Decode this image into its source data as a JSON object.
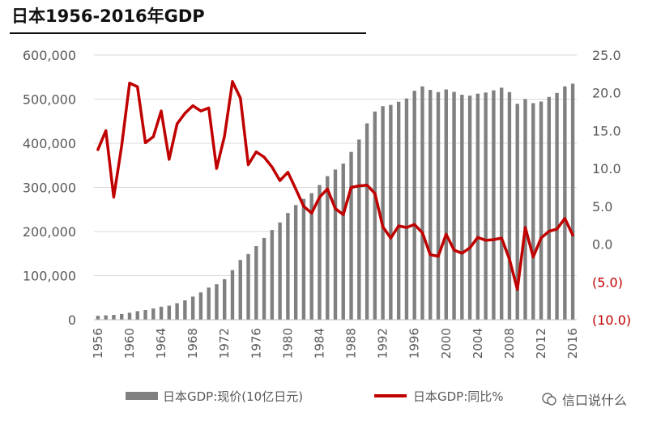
{
  "title": "日本1956-2016年GDP",
  "watermark": "信口说什么",
  "colors": {
    "bar": "#808080",
    "line": "#c00000",
    "grid": "#d9d9d9",
    "axis_text": "#595959",
    "neg_text": "#c00000"
  },
  "chart_data": {
    "type": "bar+line",
    "title": "日本1956-2016年GDP",
    "x_ticks": [
      "1956",
      "1960",
      "1964",
      "1968",
      "1972",
      "1976",
      "1980",
      "1984",
      "1988",
      "1992",
      "1996",
      "2000",
      "2004",
      "2008",
      "2012",
      "2016"
    ],
    "left_axis": {
      "ylim": [
        0,
        600000
      ],
      "ticks": [
        "0",
        "100,000",
        "200,000",
        "300,000",
        "400,000",
        "500,000",
        "600,000"
      ]
    },
    "right_axis": {
      "ylim": [
        -10,
        25
      ],
      "ticks": [
        "(10.0)",
        "(5.0)",
        "0.0",
        "5.0",
        "10.0",
        "15.0",
        "20.0",
        "25.0"
      ]
    },
    "legend": {
      "bar_label": "日本GDP:现价(10亿日元)",
      "line_label": "日本GDP:同比%"
    },
    "years": [
      1956,
      1957,
      1958,
      1959,
      1960,
      1961,
      1962,
      1963,
      1964,
      1965,
      1966,
      1967,
      1968,
      1969,
      1970,
      1971,
      1972,
      1973,
      1974,
      1975,
      1976,
      1977,
      1978,
      1979,
      1980,
      1981,
      1982,
      1983,
      1984,
      1985,
      1986,
      1987,
      1988,
      1989,
      1990,
      1991,
      1992,
      1993,
      1994,
      1995,
      1996,
      1997,
      1998,
      1999,
      2000,
      2001,
      2002,
      2003,
      2004,
      2005,
      2006,
      2007,
      2008,
      2009,
      2010,
      2011,
      2012,
      2013,
      2014,
      2015,
      2016
    ],
    "series": [
      {
        "name": "日本GDP:现价(10亿日元)",
        "axis": "left",
        "type": "bar",
        "values": [
          9000,
          10000,
          11000,
          13000,
          16000,
          19500,
          22000,
          25500,
          29500,
          32000,
          37500,
          44000,
          52500,
          62000,
          73000,
          80500,
          92000,
          112500,
          135500,
          149000,
          167000,
          185500,
          203500,
          220500,
          242000,
          260000,
          274000,
          287000,
          305500,
          325500,
          340500,
          354000,
          380500,
          408500,
          445000,
          472000,
          484000,
          487000,
          494000,
          501500,
          519000,
          529000,
          521000,
          516000,
          522000,
          516500,
          510000,
          508000,
          512500,
          515000,
          520000,
          526000,
          516000,
          489500,
          500000,
          491000,
          494500,
          505000,
          514000,
          529000,
          535000
        ]
      },
      {
        "name": "日本GDP:同比%",
        "axis": "right",
        "type": "line",
        "values": [
          12.5,
          15.0,
          6.2,
          13.0,
          21.3,
          20.8,
          13.4,
          14.2,
          17.6,
          11.2,
          15.9,
          17.3,
          18.3,
          17.6,
          18.0,
          10.0,
          14.3,
          21.5,
          19.3,
          10.5,
          12.2,
          11.5,
          10.2,
          8.4,
          9.5,
          7.3,
          5.0,
          4.1,
          6.2,
          7.3,
          4.7,
          3.9,
          7.5,
          7.7,
          7.8,
          6.7,
          2.3,
          0.8,
          2.4,
          2.2,
          2.6,
          1.5,
          -1.4,
          -1.6,
          1.3,
          -0.8,
          -1.2,
          -0.5,
          0.9,
          0.5,
          0.6,
          0.8,
          -2.0,
          -6.0,
          2.2,
          -1.7,
          0.8,
          1.7,
          2.0,
          3.4,
          1.2
        ]
      }
    ]
  }
}
